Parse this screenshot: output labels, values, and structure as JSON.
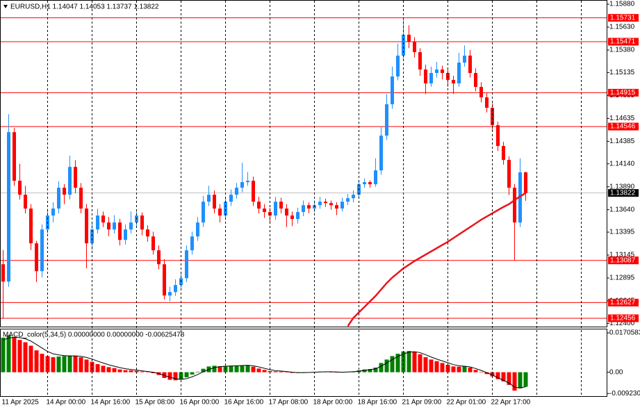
{
  "chart_data": [
    {
      "type": "candlestick",
      "title": "EURUSD,H1  1.14047 1.14053 1.13737 1.13822",
      "categories": [
        "11 Apr 2025",
        null,
        null,
        null,
        null,
        null,
        null,
        null,
        "14 Apr 00:00",
        null,
        null,
        null,
        null,
        null,
        null,
        null,
        "14 Apr 16:00",
        null,
        null,
        null,
        null,
        null,
        null,
        null,
        "15 Apr 08:00",
        null,
        null,
        null,
        null,
        null,
        null,
        null,
        "16 Apr 00:00",
        null,
        null,
        null,
        null,
        null,
        null,
        null,
        "16 Apr 16:00",
        null,
        null,
        null,
        null,
        null,
        null,
        null,
        "17 Apr 08:00",
        null,
        null,
        null,
        null,
        null,
        null,
        null,
        "18 Apr 00:00",
        null,
        null,
        null,
        null,
        null,
        null,
        null,
        "18 Apr 16:00",
        null,
        null,
        null,
        null,
        null,
        null,
        null,
        "21 Apr 09:00",
        null,
        null,
        null,
        null,
        null,
        null,
        null,
        "22 Apr 01:00",
        null,
        null,
        null,
        null,
        null,
        null,
        null,
        "22 Apr 17:00",
        null,
        null,
        null,
        null,
        null,
        null
      ],
      "candles": [
        [
          1.13045,
          1.132,
          1.1245,
          1.12856
        ],
        [
          1.12856,
          1.1468,
          1.128,
          1.14485
        ],
        [
          1.14485,
          1.1453,
          1.139,
          1.13955
        ],
        [
          1.13955,
          1.1414,
          1.1375,
          1.13803
        ],
        [
          1.13803,
          1.139,
          1.136,
          1.13652
        ],
        [
          1.13652,
          1.137,
          1.132,
          1.13273
        ],
        [
          1.13273,
          1.133,
          1.1285,
          1.12969
        ],
        [
          1.12969,
          1.1348,
          1.129,
          1.13424
        ],
        [
          1.13424,
          1.1365,
          1.1338,
          1.13576
        ],
        [
          1.13576,
          1.1372,
          1.135,
          1.13652
        ],
        [
          1.13652,
          1.1395,
          1.136,
          1.13879
        ],
        [
          1.13879,
          1.1392,
          1.137,
          1.13803
        ],
        [
          1.13803,
          1.1423,
          1.1375,
          1.14106
        ],
        [
          1.14106,
          1.1418,
          1.1382,
          1.13879
        ],
        [
          1.13879,
          1.1393,
          1.136,
          1.13652
        ],
        [
          1.13652,
          1.137,
          1.13,
          1.13273
        ],
        [
          1.13273,
          1.135,
          1.132,
          1.13424
        ],
        [
          1.13424,
          1.1365,
          1.1338,
          1.13576
        ],
        [
          1.13576,
          1.1362,
          1.1345,
          1.135
        ],
        [
          1.135,
          1.1356,
          1.1335,
          1.13424
        ],
        [
          1.13424,
          1.1358,
          1.1338,
          1.135
        ],
        [
          1.135,
          1.1354,
          1.1325,
          1.1331
        ],
        [
          1.1331,
          1.1348,
          1.1326,
          1.13424
        ],
        [
          1.13424,
          1.1362,
          1.1338,
          1.135
        ],
        [
          1.135,
          1.1364,
          1.1345,
          1.13576
        ],
        [
          1.13576,
          1.1361,
          1.1336,
          1.13424
        ],
        [
          1.13424,
          1.1347,
          1.1329,
          1.13348
        ],
        [
          1.13348,
          1.134,
          1.1315,
          1.13197
        ],
        [
          1.13197,
          1.1325,
          1.1299,
          1.13045
        ],
        [
          1.13045,
          1.131,
          1.1266,
          1.12704
        ],
        [
          1.12704,
          1.128,
          1.1264,
          1.12742
        ],
        [
          1.12742,
          1.1288,
          1.127,
          1.12818
        ],
        [
          1.12818,
          1.1295,
          1.1278,
          1.12893
        ],
        [
          1.12893,
          1.1325,
          1.1285,
          1.13197
        ],
        [
          1.13197,
          1.134,
          1.1315,
          1.13348
        ],
        [
          1.13348,
          1.1356,
          1.133,
          1.135
        ],
        [
          1.135,
          1.1379,
          1.1345,
          1.13727
        ],
        [
          1.13727,
          1.139,
          1.1368,
          1.13803
        ],
        [
          1.13803,
          1.1385,
          1.136,
          1.13652
        ],
        [
          1.13652,
          1.137,
          1.135,
          1.13576
        ],
        [
          1.13576,
          1.1378,
          1.1353,
          1.13727
        ],
        [
          1.13727,
          1.1386,
          1.1368,
          1.13803
        ],
        [
          1.13803,
          1.1393,
          1.1376,
          1.13879
        ],
        [
          1.13879,
          1.1415,
          1.1383,
          1.1394
        ],
        [
          1.1394,
          1.1405,
          1.139,
          1.13955
        ],
        [
          1.13955,
          1.14,
          1.1368,
          1.13727
        ],
        [
          1.13727,
          1.1378,
          1.136,
          1.13652
        ],
        [
          1.13652,
          1.137,
          1.1355,
          1.13614
        ],
        [
          1.13614,
          1.1366,
          1.135,
          1.13576
        ],
        [
          1.13576,
          1.1378,
          1.1353,
          1.13727
        ],
        [
          1.13727,
          1.1377,
          1.136,
          1.13652
        ],
        [
          1.13652,
          1.137,
          1.1345,
          1.13576
        ],
        [
          1.13576,
          1.1362,
          1.1346,
          1.13538
        ],
        [
          1.13538,
          1.1366,
          1.1349,
          1.13614
        ],
        [
          1.13614,
          1.1374,
          1.1357,
          1.13689
        ],
        [
          1.13689,
          1.1372,
          1.136,
          1.13652
        ],
        [
          1.13652,
          1.1374,
          1.1361,
          1.13689
        ],
        [
          1.13689,
          1.1378,
          1.1365,
          1.13727
        ],
        [
          1.13727,
          1.1376,
          1.1367,
          1.13712
        ],
        [
          1.13712,
          1.1374,
          1.1364,
          1.13689
        ],
        [
          1.13689,
          1.1372,
          1.1358,
          1.13652
        ],
        [
          1.13652,
          1.1377,
          1.1362,
          1.13727
        ],
        [
          1.13727,
          1.1381,
          1.1369,
          1.13765
        ],
        [
          1.13765,
          1.1385,
          1.1372,
          1.13803
        ],
        [
          1.13803,
          1.1396,
          1.1376,
          1.13917
        ],
        [
          1.13917,
          1.1398,
          1.1388,
          1.1394
        ],
        [
          1.1394,
          1.1396,
          1.1388,
          1.13917
        ],
        [
          1.13917,
          1.142,
          1.1389,
          1.14068
        ],
        [
          1.14068,
          1.1455,
          1.1402,
          1.14447
        ],
        [
          1.14447,
          1.149,
          1.144,
          1.14789
        ],
        [
          1.14789,
          1.152,
          1.1474,
          1.15092
        ],
        [
          1.15092,
          1.1545,
          1.1505,
          1.15319
        ],
        [
          1.15319,
          1.15731,
          1.1528,
          1.15547
        ],
        [
          1.15547,
          1.1565,
          1.154,
          1.15471
        ],
        [
          1.15471,
          1.1552,
          1.153,
          1.15357
        ],
        [
          1.15357,
          1.154,
          1.151,
          1.15168
        ],
        [
          1.15168,
          1.1522,
          1.149,
          1.15016
        ],
        [
          1.15016,
          1.152,
          1.1498,
          1.1513
        ],
        [
          1.1513,
          1.1525,
          1.1508,
          1.15168
        ],
        [
          1.15168,
          1.1521,
          1.1506,
          1.1513
        ],
        [
          1.1513,
          1.1518,
          1.1498,
          1.15054
        ],
        [
          1.15054,
          1.151,
          1.149,
          1.15016
        ],
        [
          1.15016,
          1.1535,
          1.1498,
          1.15243
        ],
        [
          1.15243,
          1.1543,
          1.152,
          1.15319
        ],
        [
          1.15319,
          1.1538,
          1.1508,
          1.1513
        ],
        [
          1.1513,
          1.1518,
          1.1493,
          1.14978
        ],
        [
          1.14978,
          1.1503,
          1.1481,
          1.14864
        ],
        [
          1.14864,
          1.14915,
          1.147,
          1.14751
        ],
        [
          1.14751,
          1.148,
          1.145,
          1.14561
        ],
        [
          1.14561,
          1.146,
          1.1428,
          1.14334
        ],
        [
          1.14334,
          1.1438,
          1.1413,
          1.14182
        ],
        [
          1.14182,
          1.1422,
          1.138,
          1.13879
        ],
        [
          1.13879,
          1.1392,
          1.13087,
          1.135
        ],
        [
          1.135,
          1.142,
          1.1345,
          1.14047
        ],
        [
          1.14047,
          1.14053,
          1.13737,
          1.13822
        ]
      ],
      "up_color": "#1e90ff",
      "down_color": "#ff0000",
      "ma": {
        "color": "#e8151b",
        "values": [
          null,
          null,
          null,
          null,
          null,
          null,
          null,
          null,
          null,
          null,
          null,
          null,
          null,
          null,
          null,
          null,
          null,
          null,
          null,
          null,
          null,
          null,
          null,
          null,
          null,
          null,
          null,
          null,
          null,
          null,
          null,
          null,
          null,
          null,
          null,
          null,
          null,
          null,
          null,
          null,
          null,
          null,
          null,
          null,
          null,
          null,
          null,
          null,
          null,
          null,
          null,
          null,
          null,
          null,
          null,
          null,
          null,
          null,
          null,
          null,
          null,
          null,
          1.1237,
          1.1246,
          1.1252,
          1.1258,
          1.1264,
          1.127,
          1.1277,
          1.1284,
          1.129,
          1.1295,
          1.13,
          1.1304,
          1.1308,
          1.13115,
          1.1315,
          1.13185,
          1.1322,
          1.13255,
          1.1329,
          1.1333,
          1.1337,
          1.1341,
          1.1345,
          1.1349,
          1.1353,
          1.13565,
          1.136,
          1.13635,
          1.1367,
          1.137,
          1.13745,
          1.13785,
          1.1382
        ]
      },
      "levels": [
        {
          "value": 1.15731,
          "label": "1.15731"
        },
        {
          "value": 1.15471,
          "label": "1.15471"
        },
        {
          "value": 1.14915,
          "label": "1.14915"
        },
        {
          "value": 1.14546,
          "label": "1.14546"
        },
        {
          "value": 1.13087,
          "label": "1.13087"
        },
        {
          "value": 1.12627,
          "label": "1.12627"
        },
        {
          "value": 1.12456,
          "label": "1.12456"
        }
      ],
      "level_color": "#ff0000",
      "current_price": {
        "value": 1.13822,
        "label": "1.13822"
      },
      "ylim": [
        1.12365,
        1.15918
      ],
      "yticks": [
        {
          "value": 1.1588,
          "label": "1.15880"
        },
        {
          "value": 1.1563,
          "label": "1.15630"
        },
        {
          "value": 1.1538,
          "label": "1.15380"
        },
        {
          "value": 1.15135,
          "label": "1.15135"
        },
        {
          "value": 1.14885,
          "label": "1.14885"
        },
        {
          "value": 1.14635,
          "label": "1.14635"
        },
        {
          "value": 1.14385,
          "label": "1.14385"
        },
        {
          "value": 1.1414,
          "label": "1.14140"
        },
        {
          "value": 1.1389,
          "label": "1.13890"
        },
        {
          "value": 1.1364,
          "label": "1.13640"
        },
        {
          "value": 1.13395,
          "label": "1.13395"
        },
        {
          "value": 1.13145,
          "label": "1.13145"
        },
        {
          "value": 1.12895,
          "label": "1.12895"
        },
        {
          "value": 1.12645,
          "label": "1.12645"
        },
        {
          "value": 1.124,
          "label": "1.12400"
        }
      ],
      "grid": true
    },
    {
      "type": "macd",
      "title": "MACD_color(5,34,5) 0.00000000 0.00000000 -0.00625478",
      "histogram": {
        "up_color": "#008000",
        "down_color": "#ff0000",
        "values": [
          0.015,
          0.016,
          0.015,
          0.014,
          0.013,
          0.0115,
          0.0095,
          0.008,
          0.007,
          0.0065,
          0.0068,
          0.007,
          0.0072,
          0.007,
          0.0065,
          0.0055,
          0.0045,
          0.0035,
          0.0028,
          0.0022,
          0.0018,
          0.0012,
          0.0009,
          0.0008,
          0.0006,
          0.0003,
          0.0001,
          -0.0004,
          -0.0012,
          -0.0025,
          -0.0033,
          -0.0035,
          -0.0032,
          -0.0022,
          -0.001,
          0.0002,
          0.0015,
          0.0025,
          0.0028,
          0.0026,
          0.0027,
          0.0028,
          0.0029,
          0.003,
          0.003,
          0.0024,
          0.0016,
          0.001,
          0.0005,
          0.0004,
          0.0003,
          0,
          -0.0003,
          -0.0003,
          -0.0001,
          -0.0001,
          0,
          0.0002,
          0.0002,
          0.0001,
          -0.0001,
          0,
          0.0002,
          0.0004,
          0.0008,
          0.0012,
          0.0014,
          0.002,
          0.004,
          0.0055,
          0.007,
          0.008,
          0.009,
          0.0092,
          0.0088,
          0.0078,
          0.0065,
          0.0055,
          0.0048,
          0.004,
          0.0032,
          0.0025,
          0.0024,
          0.0026,
          0.002,
          0.001,
          0.0002,
          -0.0008,
          -0.0018,
          -0.003,
          -0.004,
          -0.0055,
          -0.008,
          -0.007,
          -0.0063
        ]
      },
      "signal": {
        "color": "#000000",
        "values": [
          0.014,
          0.0148,
          0.0152,
          0.015,
          0.0145,
          0.0135,
          0.012,
          0.0105,
          0.009,
          0.008,
          0.0075,
          0.0072,
          0.0071,
          0.0071,
          0.0069,
          0.0064,
          0.0057,
          0.0048,
          0.004,
          0.0032,
          0.0026,
          0.002,
          0.0015,
          0.0012,
          0.0009,
          0.0006,
          0.0003,
          0,
          -0.0006,
          -0.0014,
          -0.0022,
          -0.0028,
          -0.0031,
          -0.0028,
          -0.002,
          -0.001,
          0.0002,
          0.0012,
          0.002,
          0.0024,
          0.0026,
          0.0027,
          0.0028,
          0.0029,
          0.003,
          0.0028,
          0.0023,
          0.0017,
          0.0011,
          0.0007,
          0.0005,
          0.0003,
          0,
          -0.0002,
          -0.0002,
          -0.0001,
          0,
          0.0001,
          0.0002,
          0.0002,
          0.0001,
          0,
          0.0001,
          0.0002,
          0.0005,
          0.0008,
          0.0011,
          0.0015,
          0.0026,
          0.004,
          0.0055,
          0.0068,
          0.0079,
          0.0087,
          0.0089,
          0.0085,
          0.0076,
          0.0066,
          0.0057,
          0.0049,
          0.0041,
          0.0033,
          0.0028,
          0.0026,
          0.0023,
          0.0016,
          0.0008,
          -0.0002,
          -0.0012,
          -0.0024,
          -0.0035,
          -0.0047,
          -0.0065,
          -0.0068,
          -0.0063
        ]
      },
      "ylim": [
        -0.01036,
        0.01858
      ],
      "yticks": [
        0.0170583,
        {
          "value": 0,
          "label": "0.00"
        },
        {
          "value": -0.00923,
          "label": "-0.0092300"
        }
      ]
    }
  ]
}
